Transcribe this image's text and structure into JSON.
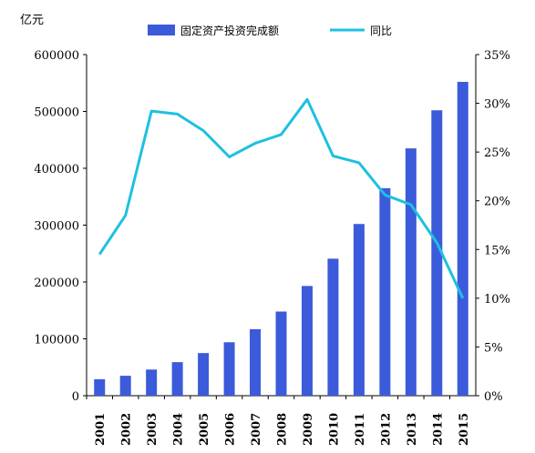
{
  "chart_data": {
    "type": "bar",
    "title": "",
    "y_left_unit": "亿元",
    "categories": [
      "2001",
      "2002",
      "2003",
      "2004",
      "2005",
      "2006",
      "2007",
      "2008",
      "2009",
      "2010",
      "2011",
      "2012",
      "2013",
      "2014",
      "2015"
    ],
    "series": [
      {
        "name": "固定资产投资完成额",
        "type": "bar",
        "axis": "left",
        "color": "#3b5bdb",
        "values": [
          29000,
          35000,
          46000,
          59000,
          75000,
          94000,
          117000,
          148000,
          193000,
          241000,
          302000,
          365000,
          435000,
          502000,
          552000
        ]
      },
      {
        "name": "同比",
        "type": "line",
        "axis": "right",
        "color": "#1ec0e0",
        "values": [
          14.5,
          18.5,
          29.2,
          28.9,
          27.2,
          24.5,
          25.9,
          26.8,
          30.4,
          24.6,
          23.9,
          20.6,
          19.6,
          15.7,
          10.0
        ]
      }
    ],
    "y_left": {
      "min": 0,
      "max": 600000,
      "step": 100000
    },
    "y_right": {
      "min": 0,
      "max": 35,
      "step": 5,
      "suffix": "%"
    },
    "legend_position": "top",
    "grid": false
  }
}
